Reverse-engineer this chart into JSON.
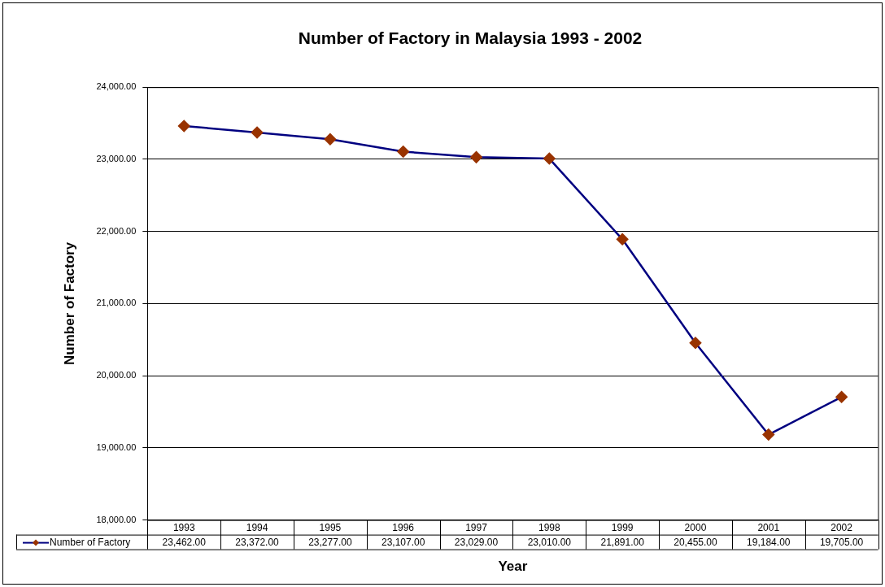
{
  "chart_data": {
    "type": "line",
    "title": "Number of Factory in Malaysia 1993 - 2002",
    "xlabel": "Year",
    "ylabel": "Number of Factory",
    "categories": [
      "1993",
      "1994",
      "1995",
      "1996",
      "1997",
      "1998",
      "1999",
      "2000",
      "2001",
      "2002"
    ],
    "series": [
      {
        "name": "Number of Factory",
        "color": "#000080",
        "colors": [
          "#993300",
          "#993300",
          "#993300",
          "#993300",
          "#993300",
          "#993300",
          "#993300",
          "#993300",
          "#993300",
          "#993300"
        ],
        "values": [
          23462,
          23372,
          23277,
          23107,
          23029,
          23010,
          21891,
          20455,
          19184,
          19705
        ],
        "value_labels": [
          "23,462.00",
          "23,372.00",
          "23,277.00",
          "23,107.00",
          "23,029.00",
          "23,010.00",
          "21,891.00",
          "20,455.00",
          "19,184.00",
          "19,705.00"
        ]
      }
    ],
    "ylim": [
      18000,
      24000
    ],
    "yticks": [
      {
        "value": 18000,
        "label": "18,000.00"
      },
      {
        "value": 19000,
        "label": "19,000.00"
      },
      {
        "value": 20000,
        "label": "20,000.00"
      },
      {
        "value": 21000,
        "label": "21,000.00"
      },
      {
        "value": 22000,
        "label": "22,000.00"
      },
      {
        "value": 23000,
        "label": "23,000.00"
      },
      {
        "value": 24000,
        "label": "24,000.00"
      }
    ],
    "grid": "y",
    "legend": "bottom",
    "marker": "diamond",
    "line_style": "solid"
  }
}
